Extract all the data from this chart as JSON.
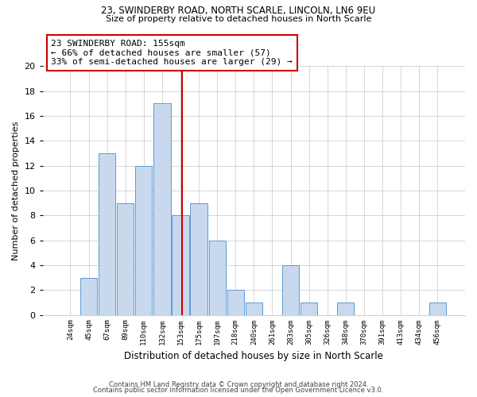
{
  "title1": "23, SWINDERBY ROAD, NORTH SCARLE, LINCOLN, LN6 9EU",
  "title2": "Size of property relative to detached houses in North Scarle",
  "xlabel": "Distribution of detached houses by size in North Scarle",
  "ylabel": "Number of detached properties",
  "footnote1": "Contains HM Land Registry data © Crown copyright and database right 2024.",
  "footnote2": "Contains public sector information licensed under the Open Government Licence v3.0.",
  "categories": [
    "24sqm",
    "45sqm",
    "67sqm",
    "89sqm",
    "110sqm",
    "132sqm",
    "153sqm",
    "175sqm",
    "197sqm",
    "218sqm",
    "240sqm",
    "261sqm",
    "283sqm",
    "305sqm",
    "326sqm",
    "348sqm",
    "370sqm",
    "391sqm",
    "413sqm",
    "434sqm",
    "456sqm"
  ],
  "values": [
    0,
    3,
    13,
    9,
    12,
    17,
    8,
    9,
    6,
    2,
    1,
    0,
    4,
    1,
    0,
    1,
    0,
    0,
    0,
    0,
    1
  ],
  "bar_color": "#c9d9ed",
  "bar_edge_color": "#5b9bd5",
  "property_line_label": "23 SWINDERBY ROAD: 155sqm",
  "annotation_line1": "← 66% of detached houses are smaller (57)",
  "annotation_line2": "33% of semi-detached houses are larger (29) →",
  "annotation_box_color": "#ffffff",
  "annotation_box_edge_color": "#cc0000",
  "vline_color": "#cc0000",
  "ylim": [
    0,
    20
  ],
  "yticks": [
    0,
    2,
    4,
    6,
    8,
    10,
    12,
    14,
    16,
    18,
    20
  ],
  "background_color": "#ffffff",
  "grid_color": "#d0d0d0"
}
